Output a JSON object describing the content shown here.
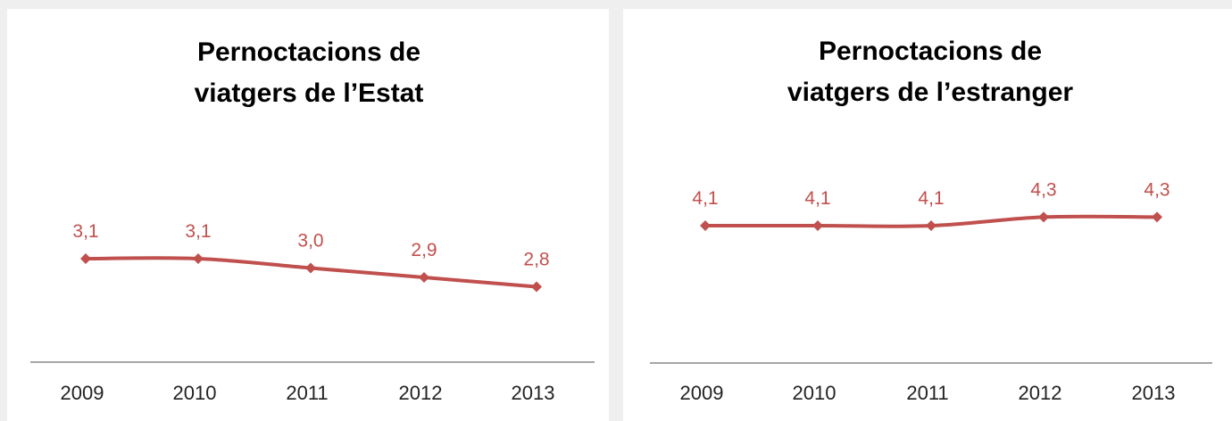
{
  "colors": {
    "line": "#c0504d",
    "label": "#c0504d",
    "axis": "#a6a6a6",
    "background": "#efefef",
    "panel": "#ffffff"
  },
  "chart_data": [
    {
      "type": "line",
      "title_lines": [
        "Pernoctacions de",
        "viatgers de l’Estat"
      ],
      "categories": [
        "2009",
        "2010",
        "2011",
        "2012",
        "2013"
      ],
      "values": [
        3.1,
        3.1,
        3.0,
        2.9,
        2.8
      ],
      "data_labels": [
        "3,1",
        "3,1",
        "3,0",
        "2,9",
        "2,8"
      ],
      "xlabel": "",
      "ylabel": "",
      "legend": "none",
      "grid": false
    },
    {
      "type": "line",
      "title_lines": [
        "Pernoctacions de",
        "viatgers de l’estranger"
      ],
      "categories": [
        "2009",
        "2010",
        "2011",
        "2012",
        "2013"
      ],
      "values": [
        4.1,
        4.1,
        4.1,
        4.3,
        4.3
      ],
      "data_labels": [
        "4,1",
        "4,1",
        "4,1",
        "4,3",
        "4,3"
      ],
      "xlabel": "",
      "ylabel": "",
      "legend": "none",
      "grid": false
    }
  ]
}
